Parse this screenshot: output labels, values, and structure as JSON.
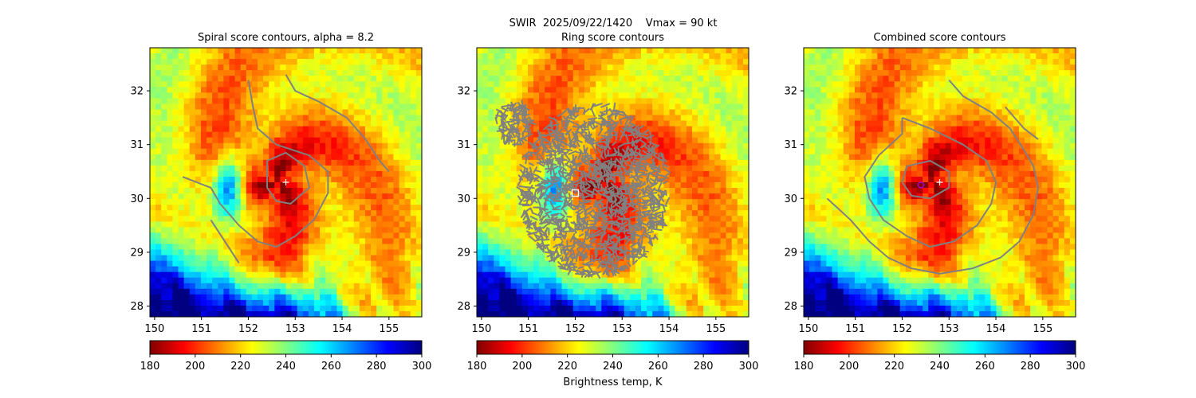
{
  "figure": {
    "suptitle": "SWIR  2025/09/22/1420    Vmax = 90 kt",
    "colorbar_label": "Brightness temp, K"
  },
  "colormap": {
    "name": "jet_r",
    "stops": [
      "#800000",
      "#ff0000",
      "#ff8000",
      "#ffff00",
      "#80ff80",
      "#00ffff",
      "#0080ff",
      "#0000ff",
      "#000080"
    ]
  },
  "chart_data": [
    {
      "type": "heatmap",
      "title": "Spiral score contours, alpha =  8.2",
      "xlim": [
        149.9,
        155.7
      ],
      "ylim": [
        27.8,
        32.8
      ],
      "xticks": [
        150,
        151,
        152,
        153,
        154,
        155
      ],
      "yticks": [
        28,
        29,
        30,
        31,
        32
      ],
      "xlabel": "",
      "ylabel": "",
      "color_range": [
        180,
        300
      ],
      "colorbar_ticks": [
        180,
        200,
        220,
        240,
        260,
        280,
        300
      ],
      "colorbar_label": "",
      "markers": [
        {
          "kind": "plus",
          "lon": 152.8,
          "lat": 30.3,
          "color": "#ffffff"
        }
      ],
      "contours": [
        {
          "color": "#808080",
          "points": [
            [
              152.0,
              32.2
            ],
            [
              152.1,
              31.7
            ],
            [
              152.2,
              31.3
            ],
            [
              152.6,
              31.0
            ],
            [
              153.3,
              30.8
            ],
            [
              153.7,
              30.5
            ],
            [
              153.7,
              30.1
            ],
            [
              153.4,
              29.6
            ],
            [
              153.0,
              29.3
            ],
            [
              152.6,
              29.1
            ],
            [
              152.2,
              29.2
            ],
            [
              151.8,
              29.5
            ],
            [
              151.4,
              29.9
            ],
            [
              151.2,
              30.2
            ],
            [
              150.6,
              30.4
            ]
          ]
        },
        {
          "color": "#808080",
          "points": [
            [
              152.8,
              32.3
            ],
            [
              153.0,
              32.0
            ],
            [
              153.5,
              31.8
            ],
            [
              154.1,
              31.5
            ],
            [
              154.5,
              31.1
            ],
            [
              154.8,
              30.7
            ],
            [
              155.0,
              30.5
            ]
          ]
        },
        {
          "color": "#808080",
          "points": [
            [
              152.4,
              30.2
            ],
            [
              152.4,
              30.7
            ],
            [
              152.8,
              30.85
            ],
            [
              153.2,
              30.6
            ],
            [
              153.3,
              30.2
            ],
            [
              152.9,
              29.9
            ],
            [
              152.6,
              29.95
            ],
            [
              152.4,
              30.2
            ]
          ]
        },
        {
          "color": "#808080",
          "points": [
            [
              151.2,
              29.6
            ],
            [
              151.5,
              29.2
            ],
            [
              151.8,
              28.8
            ]
          ]
        }
      ],
      "field": {
        "center": [
          152.6,
          30.3
        ],
        "features": [
          "cold spiral cloud bands with warm core",
          "warm eye band west of center",
          "warm sea-surface region in south-west corner"
        ]
      }
    },
    {
      "type": "heatmap",
      "title": "Ring score contours",
      "xlim": [
        149.9,
        155.7
      ],
      "ylim": [
        27.8,
        32.8
      ],
      "xticks": [
        150,
        151,
        152,
        153,
        154,
        155
      ],
      "yticks": [
        28,
        29,
        30,
        31,
        32
      ],
      "xlabel": "",
      "ylabel": "",
      "color_range": [
        180,
        300
      ],
      "colorbar_ticks": [
        180,
        200,
        220,
        240,
        260,
        280,
        300
      ],
      "colorbar_label": "Brightness temp, K",
      "markers": [
        {
          "kind": "square",
          "lon": 152.0,
          "lat": 30.1,
          "color": "#ffffff"
        }
      ],
      "ring_blobs": [
        {
          "lon": 152.4,
          "lat": 30.15,
          "radius_deg": 1.6,
          "color": "#808080"
        },
        {
          "lon": 150.7,
          "lat": 31.4,
          "radius_deg": 0.4,
          "color": "#808080"
        }
      ],
      "field": {
        "center": [
          152.6,
          30.3
        ],
        "features": [
          "dense grey ring-score contours over cloud region"
        ]
      }
    },
    {
      "type": "heatmap",
      "title": "Combined score contours",
      "xlim": [
        149.9,
        155.7
      ],
      "ylim": [
        27.8,
        32.8
      ],
      "xticks": [
        150,
        151,
        152,
        153,
        154,
        155
      ],
      "yticks": [
        28,
        29,
        30,
        31,
        32
      ],
      "xlabel": "",
      "ylabel": "",
      "color_range": [
        180,
        300
      ],
      "colorbar_ticks": [
        180,
        200,
        220,
        240,
        260,
        280,
        300
      ],
      "colorbar_label": "",
      "markers": [
        {
          "kind": "plus",
          "lon": 152.8,
          "lat": 30.3,
          "color": "#ffffff"
        },
        {
          "kind": "circle",
          "lon": 152.4,
          "lat": 30.25,
          "color": "#aa00cc"
        }
      ],
      "contours": [
        {
          "color": "#808080",
          "points": [
            [
              153.0,
              32.2
            ],
            [
              153.3,
              31.9
            ],
            [
              153.9,
              31.6
            ],
            [
              154.3,
              31.3
            ],
            [
              154.6,
              30.9
            ],
            [
              154.8,
              30.6
            ],
            [
              154.9,
              30.2
            ],
            [
              154.8,
              29.7
            ],
            [
              154.5,
              29.2
            ],
            [
              154.1,
              28.9
            ],
            [
              153.5,
              28.7
            ],
            [
              152.8,
              28.6
            ],
            [
              152.2,
              28.7
            ],
            [
              151.7,
              28.9
            ],
            [
              151.3,
              29.2
            ],
            [
              150.9,
              29.6
            ],
            [
              150.4,
              30.0
            ]
          ]
        },
        {
          "color": "#808080",
          "points": [
            [
              152.0,
              31.5
            ],
            [
              152.6,
              31.3
            ],
            [
              153.3,
              31.0
            ],
            [
              153.8,
              30.7
            ],
            [
              154.0,
              30.3
            ],
            [
              153.9,
              29.9
            ],
            [
              153.6,
              29.5
            ],
            [
              153.1,
              29.2
            ],
            [
              152.6,
              29.1
            ],
            [
              152.1,
              29.3
            ],
            [
              151.6,
              29.6
            ],
            [
              151.3,
              30.0
            ],
            [
              151.2,
              30.4
            ],
            [
              151.5,
              30.8
            ],
            [
              152.0,
              31.2
            ],
            [
              152.0,
              31.5
            ]
          ]
        },
        {
          "color": "#808080",
          "points": [
            [
              152.0,
              30.3
            ],
            [
              152.1,
              30.6
            ],
            [
              152.6,
              30.7
            ],
            [
              153.0,
              30.5
            ],
            [
              153.0,
              30.2
            ],
            [
              152.6,
              30.0
            ],
            [
              152.2,
              30.05
            ],
            [
              152.0,
              30.3
            ]
          ]
        },
        {
          "color": "#808080",
          "points": [
            [
              154.2,
              31.7
            ],
            [
              154.6,
              31.3
            ],
            [
              154.9,
              31.1
            ]
          ]
        }
      ],
      "field": {
        "center": [
          152.6,
          30.3
        ],
        "features": [
          "same brightness temperature field as spiral panel"
        ]
      }
    }
  ]
}
